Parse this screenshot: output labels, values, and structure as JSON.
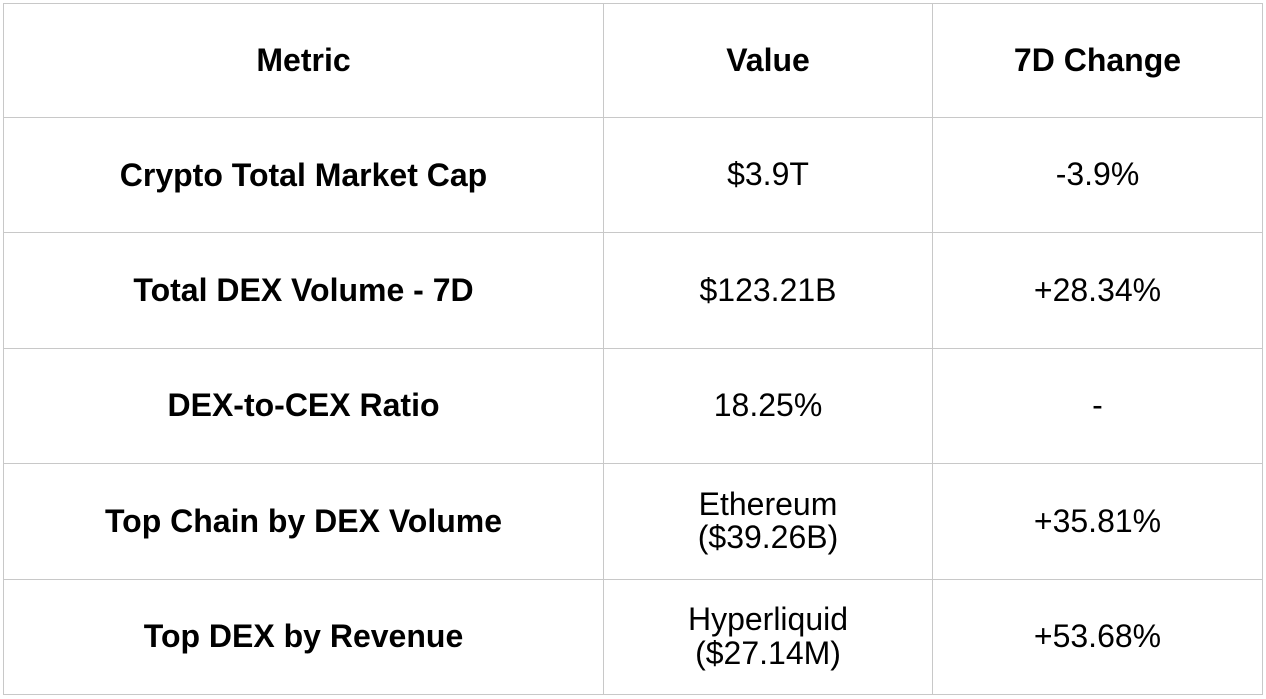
{
  "table": {
    "headers": [
      "Metric",
      "Value",
      "7D Change"
    ],
    "rows": [
      {
        "metric": "Crypto Total Market Cap",
        "value": [
          "$3.9T"
        ],
        "change": "-3.9%"
      },
      {
        "metric": "Total DEX Volume - 7D",
        "value": [
          "$123.21B"
        ],
        "change": "+28.34%"
      },
      {
        "metric": "DEX-to-CEX Ratio",
        "value": [
          "18.25%"
        ],
        "change": "-"
      },
      {
        "metric": "Top Chain by DEX Volume",
        "value": [
          "Ethereum",
          "($39.26B)"
        ],
        "change": "+35.81%"
      },
      {
        "metric": "Top DEX by Revenue",
        "value": [
          "Hyperliquid",
          "($27.14M)"
        ],
        "change": "+53.68%"
      }
    ]
  }
}
